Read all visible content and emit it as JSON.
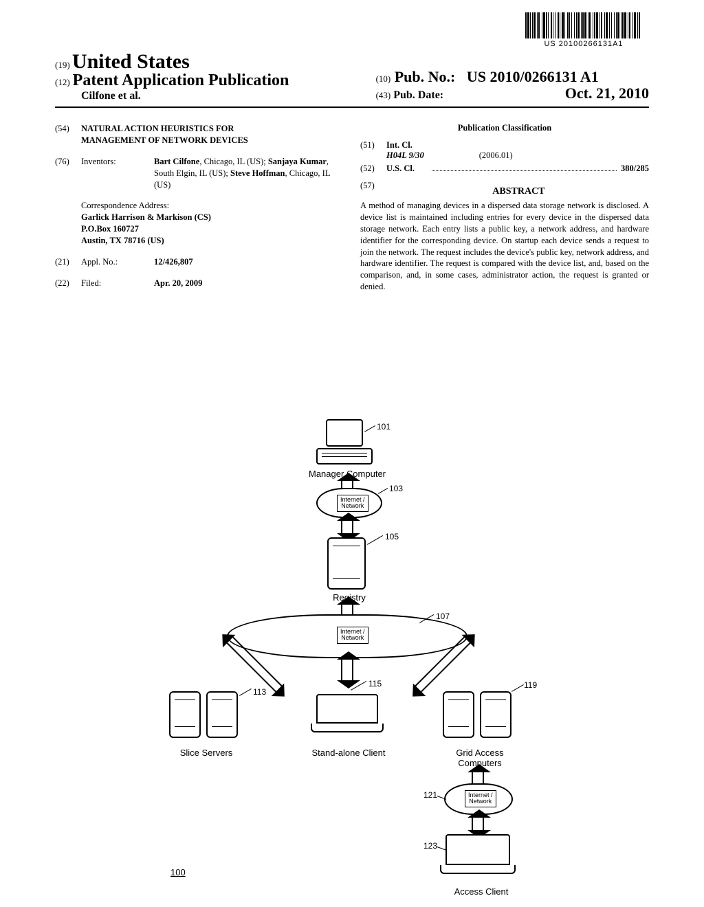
{
  "barcode": {
    "text": "US 20100266131A1",
    "pattern": [
      2,
      1,
      3,
      1,
      1,
      2,
      1,
      1,
      3,
      2,
      1,
      1,
      2,
      3,
      1,
      1,
      3,
      1,
      2,
      1,
      1,
      3,
      2,
      1,
      1,
      2,
      1,
      3,
      2,
      1,
      1,
      2,
      3,
      1,
      1,
      3,
      2,
      1,
      1,
      2,
      1,
      3,
      1,
      2,
      1,
      1,
      3,
      2,
      1,
      1,
      2,
      1,
      3,
      2,
      1,
      1,
      2,
      3,
      1,
      1,
      2,
      1,
      3,
      2,
      1,
      1,
      2,
      3,
      1,
      1,
      3,
      2,
      1,
      2,
      1,
      3,
      1,
      2,
      1,
      1,
      3,
      2,
      1,
      1,
      2,
      1,
      3,
      2,
      1,
      1,
      2,
      3,
      1,
      1,
      3,
      2,
      1,
      1,
      2,
      3
    ]
  },
  "header": {
    "line19_code": "(19)",
    "country": "United States",
    "line12_code": "(12)",
    "pub_type": "Patent Application Publication",
    "authors": "Cilfone et al.",
    "pubno_code": "(10)",
    "pubno_label": "Pub. No.:",
    "pubno_val": "US 2010/0266131 A1",
    "pubdate_code": "(43)",
    "pubdate_label": "Pub. Date:",
    "pubdate_val": "Oct. 21, 2010"
  },
  "left": {
    "title": {
      "code": "(54)",
      "val": "NATURAL ACTION HEURISTICS FOR MANAGEMENT OF NETWORK DEVICES"
    },
    "inventors": {
      "code": "(76)",
      "label": "Inventors:",
      "val_html": "<b>Bart Cilfone</b>, Chicago, IL (US); <b>Sanjaya Kumar</b>, South Elgin, IL (US); <b>Steve Hoffman</b>, Chicago, IL (US)"
    },
    "correspondence": {
      "heading": "Correspondence Address:",
      "line1": "Garlick Harrison & Markison (CS)",
      "line2": "P.O.Box 160727",
      "line3": "Austin, TX 78716 (US)"
    },
    "applno": {
      "code": "(21)",
      "label": "Appl. No.:",
      "val": "12/426,807"
    },
    "filed": {
      "code": "(22)",
      "label": "Filed:",
      "val": "Apr. 20, 2009"
    }
  },
  "right": {
    "pub_class_heading": "Publication Classification",
    "intcl": {
      "code": "(51)",
      "label": "Int. Cl.",
      "class": "H04L 9/30",
      "date": "(2006.01)"
    },
    "uscl": {
      "code": "(52)",
      "label": "U.S. Cl.",
      "val": "380/285"
    },
    "abstract": {
      "code": "(57)",
      "heading": "ABSTRACT",
      "text": "A method of managing devices in a dispersed data storage network is disclosed. A device list is maintained including entries for every device in the dispersed data storage network. Each entry lists a public key, a network address, and hardware identifier for the corresponding device. On startup each device sends a request to join the network. The request includes the device's public key, network address, and hardware identifier. The request is compared with the device list, and, based on the comparison, and, in some cases, administrator action, the request is granted or denied."
    }
  },
  "diagram": {
    "figref": "100",
    "nodes": {
      "manager": {
        "label": "Manager Computer",
        "ref": "101"
      },
      "cloud1": {
        "label": "Internet / Network",
        "ref": "103"
      },
      "registry": {
        "label": "Registry",
        "ref": "105"
      },
      "cloud2": {
        "label": "Internet / Network",
        "ref": "107"
      },
      "servers": {
        "label": "Slice Servers",
        "ref": "113"
      },
      "client": {
        "label": "Stand-alone Client",
        "ref": "115"
      },
      "grid": {
        "label": "Grid Access Computers",
        "ref": "119"
      },
      "cloud3": {
        "label": "Internet / Network",
        "ref": "121"
      },
      "access": {
        "label": "Access Client",
        "ref": "123"
      }
    },
    "colors": {
      "stroke": "#000000",
      "fill": "#ffffff",
      "text": "#000000"
    },
    "font": {
      "label_size": 13,
      "ref_size": 12,
      "family": "Arial"
    }
  }
}
